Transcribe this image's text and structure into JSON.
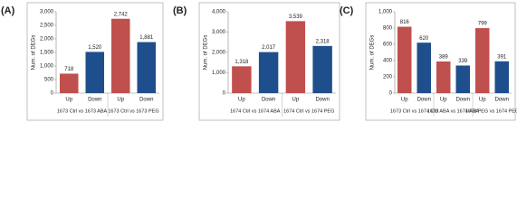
{
  "chart_data": [
    {
      "type": "bar",
      "label": "(A)",
      "y_label": "Num. of DEGs",
      "categories": [
        "Up",
        "Down",
        "Up",
        "Down"
      ],
      "groups": [
        "1673 Ctrl vs 1673 ABA",
        "1673 Ctrl vs 1673 PEG"
      ],
      "values": [
        718,
        1520,
        2742,
        1881
      ],
      "value_labels": [
        "718",
        "1,520",
        "2,742",
        "1,881"
      ],
      "colors": [
        "#c0504d",
        "#1f4e8c",
        "#c0504d",
        "#1f4e8c"
      ],
      "ylim": [
        0,
        3000
      ],
      "yticks": [
        0,
        500,
        {
          "value": 1000,
          "label": "1,000"
        },
        {
          "value": 1500,
          "label": "1,500"
        },
        {
          "value": 2000,
          "label": "2,000"
        },
        {
          "value": 2500,
          "label": "2,500"
        },
        {
          "value": 3000,
          "label": "3,000"
        }
      ]
    },
    {
      "type": "bar",
      "label": "(B)",
      "y_label": "Num. of DEGs",
      "categories": [
        "Up",
        "Down",
        "Up",
        "Down"
      ],
      "groups": [
        "1674 Ctrl vs 1674 ABA",
        "1674 Ctrl vs 1674 PEG"
      ],
      "values": [
        1318,
        2017,
        3539,
        2318
      ],
      "value_labels": [
        "1,318",
        "2,017",
        "3,539",
        "2,318"
      ],
      "colors": [
        "#c0504d",
        "#1f4e8c",
        "#c0504d",
        "#1f4e8c"
      ],
      "ylim": [
        0,
        4000
      ],
      "yticks": [
        0,
        {
          "value": 1000,
          "label": "1,000"
        },
        {
          "value": 2000,
          "label": "2,000"
        },
        {
          "value": 3000,
          "label": "3,000"
        },
        {
          "value": 4000,
          "label": "4,000"
        }
      ]
    },
    {
      "type": "bar",
      "label": "(C)",
      "y_label": "Num. of DEGs",
      "categories": [
        "Up",
        "Down",
        "Up",
        "Down",
        "Up",
        "Down"
      ],
      "groups": [
        "1673 Ctrl vs 1674 Ctrl",
        "1673 ABA vs 1674 ABA",
        "1673 PEG vs 1674 PEG"
      ],
      "values": [
        816,
        620,
        389,
        339,
        799,
        391
      ],
      "colors": [
        "#c0504d",
        "#1f4e8c",
        "#c0504d",
        "#1f4e8c",
        "#c0504d",
        "#1f4e8c"
      ],
      "ylim": [
        0,
        1000
      ],
      "yticks": [
        0,
        200,
        400,
        600,
        800,
        {
          "value": 1000,
          "label": "1,000"
        }
      ]
    }
  ]
}
